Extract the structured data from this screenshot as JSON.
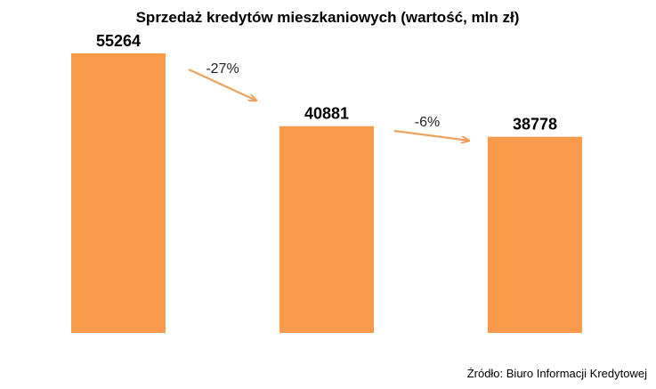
{
  "chart_data": {
    "type": "bar",
    "title": "Sprzedaż kredytów mieszkaniowych (wartość, mln zł)",
    "categories": [
      "",
      "",
      ""
    ],
    "values": [
      55264,
      40881,
      38778
    ],
    "data_labels": [
      "55264",
      "40881",
      "38778"
    ],
    "annotations": [
      {
        "text": "-27%",
        "from_index": 0,
        "to_index": 1
      },
      {
        "text": "-6%",
        "from_index": 1,
        "to_index": 2
      }
    ],
    "ylim": [
      0,
      55264
    ],
    "grid": false,
    "legend": "none",
    "source": "Źródło: Biuro Informacji Kredytowej"
  },
  "colors": {
    "bar": "#F79A4A",
    "arrow": "#F0A25C",
    "text": "#000000"
  }
}
